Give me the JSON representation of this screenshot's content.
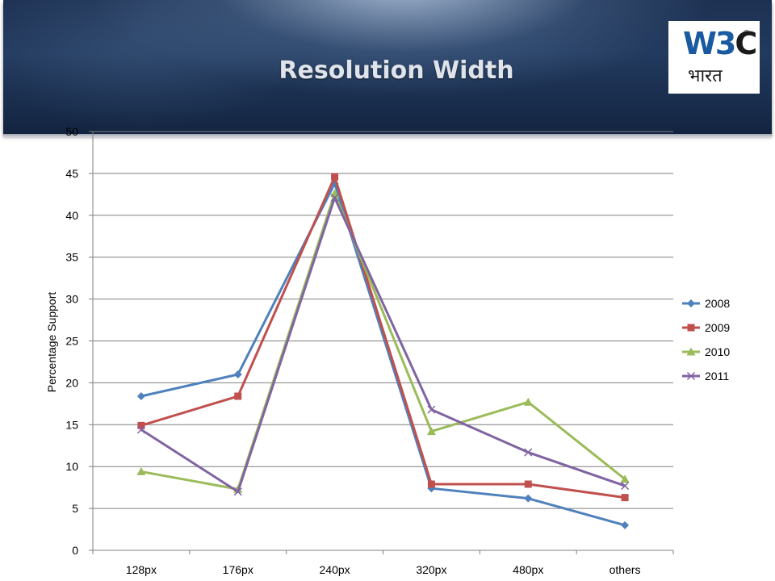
{
  "slide": {
    "title": "Resolution Width"
  },
  "logo": {
    "main_w": "W",
    "main_3": "3",
    "main_c": "C",
    "registered": "®",
    "subtitle": "भारत"
  },
  "chart_data": {
    "type": "line",
    "categories": [
      "128px",
      "176px",
      "240px",
      "320px",
      "480px",
      "others"
    ],
    "ylabel": "Percentage Support",
    "xlabel": "",
    "ylim": [
      0,
      50
    ],
    "ytick_step": 5,
    "yticks": [
      "0",
      "5",
      "10",
      "15",
      "20",
      "25",
      "30",
      "35",
      "40",
      "45",
      "50"
    ],
    "grid": true,
    "legend_position": "right",
    "series": [
      {
        "name": "2008",
        "color": "#4f81bd",
        "marker": "diamond",
        "values": [
          18.4,
          21.0,
          43.8,
          7.4,
          6.2,
          3.0
        ]
      },
      {
        "name": "2009",
        "color": "#c0504d",
        "marker": "square",
        "values": [
          14.9,
          18.4,
          44.6,
          7.9,
          7.9,
          6.3
        ]
      },
      {
        "name": "2010",
        "color": "#9bbb59",
        "marker": "triangle",
        "values": [
          9.4,
          7.3,
          42.6,
          14.2,
          17.7,
          8.5
        ]
      },
      {
        "name": "2011",
        "color": "#8064a2",
        "marker": "x",
        "values": [
          14.4,
          7.0,
          42.1,
          16.8,
          11.7,
          7.7
        ]
      }
    ]
  }
}
